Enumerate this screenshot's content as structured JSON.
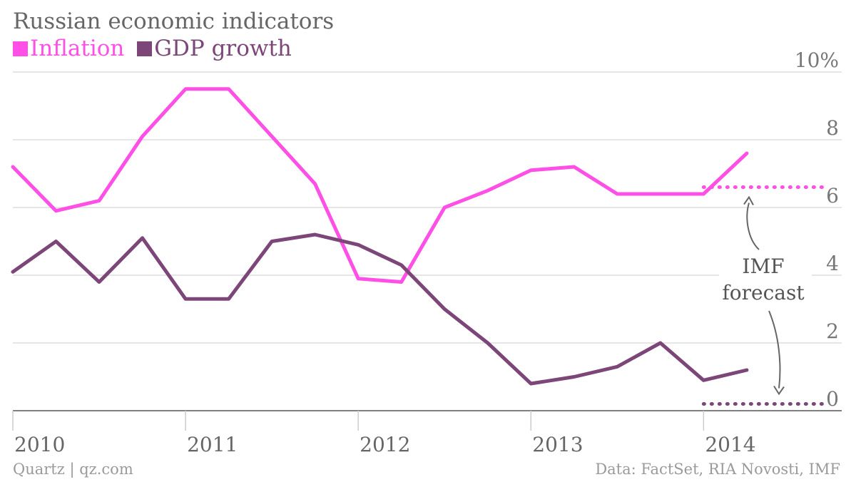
{
  "title": "Russian economic indicators",
  "legend": [
    {
      "label": "Inflation",
      "color": "#ff4fe6"
    },
    {
      "label": "GDP growth",
      "color": "#7d4678"
    }
  ],
  "footer": {
    "source_left": "Quartz | qz.com",
    "source_right": "Data: FactSet, RIA Novosti, IMF"
  },
  "chart_data": {
    "type": "line",
    "title": "Russian economic indicators",
    "xlabel": "",
    "ylabel": "",
    "xlim": [
      2010.0,
      2014.8
    ],
    "ylim": [
      0,
      10
    ],
    "x_ticks": [
      2010,
      2011,
      2012,
      2013,
      2014
    ],
    "x_tick_labels": [
      "2010",
      "2011",
      "2012",
      "2013",
      "2014"
    ],
    "y_ticks": [
      0,
      2,
      4,
      6,
      8,
      10
    ],
    "y_tick_labels": [
      "0",
      "2",
      "4",
      "6",
      "8",
      "10%"
    ],
    "grid": true,
    "legend_position": "top-left",
    "series": [
      {
        "name": "Inflation",
        "color": "#ff4fe6",
        "x": [
          2010.0,
          2010.25,
          2010.5,
          2010.75,
          2011.0,
          2011.25,
          2011.5,
          2011.75,
          2012.0,
          2012.25,
          2012.5,
          2012.75,
          2013.0,
          2013.25,
          2013.5,
          2013.75,
          2014.0,
          2014.25
        ],
        "values": [
          7.2,
          5.9,
          6.2,
          8.1,
          9.5,
          9.5,
          8.1,
          6.7,
          3.9,
          3.8,
          6.0,
          6.5,
          7.1,
          7.2,
          6.4,
          6.4,
          6.4,
          7.6
        ]
      },
      {
        "name": "GDP growth",
        "color": "#7d4678",
        "x": [
          2010.0,
          2010.25,
          2010.5,
          2010.75,
          2011.0,
          2011.25,
          2011.5,
          2011.75,
          2012.0,
          2012.25,
          2012.5,
          2012.75,
          2013.0,
          2013.25,
          2013.5,
          2013.75,
          2014.0,
          2014.25
        ],
        "values": [
          4.1,
          5.0,
          3.8,
          5.1,
          3.3,
          3.3,
          5.0,
          5.2,
          4.9,
          4.3,
          3.0,
          2.0,
          0.8,
          1.0,
          1.3,
          2.0,
          0.9,
          1.2
        ]
      }
    ],
    "forecasts": [
      {
        "series": "Inflation",
        "x": [
          2014.0,
          2014.7
        ],
        "value": 6.6
      },
      {
        "series": "GDP growth",
        "x": [
          2014.0,
          2014.7
        ],
        "value": 0.2
      }
    ],
    "annotations": [
      {
        "text": [
          "IMF",
          "forecast"
        ],
        "points_to": [
          "Inflation",
          "GDP growth"
        ]
      }
    ]
  }
}
